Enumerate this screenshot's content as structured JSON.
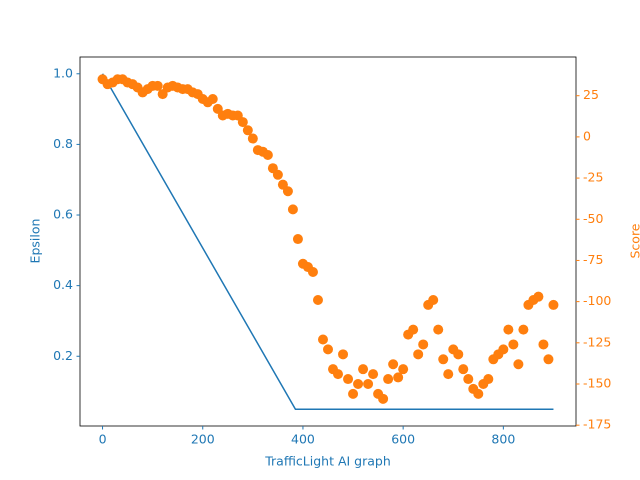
{
  "chart_data": {
    "type": "line",
    "xlabel": "TrafficLight AI graph",
    "ylabel": "Epsilon",
    "y2label": "Score",
    "xlim": [
      -45,
      945
    ],
    "xticks": [
      0,
      200,
      400,
      600,
      800
    ],
    "ylim": [
      0.0025,
      1.0475
    ],
    "yticks": [
      0.2,
      0.4,
      0.6,
      0.8,
      {
        "value": 1,
        "label": "1.0"
      }
    ],
    "y2lim": [
      -175.5,
      48.5
    ],
    "y2ticks": [
      -175,
      -150,
      -125,
      -100,
      -75,
      -50,
      -25,
      0,
      25
    ],
    "y_color": "#1f77b4",
    "y2_color": "#ff7f0e",
    "series": [
      {
        "type": "line",
        "color": "#1f77b4",
        "x": [
          0,
          385,
          900
        ],
        "values": [
          1.0,
          0.05,
          0.05
        ]
      },
      {
        "type": "scatter",
        "axis": "y2",
        "color": "#ff7f0e",
        "x": [
          0,
          10,
          20,
          30,
          40,
          50,
          60,
          70,
          80,
          90,
          100,
          110,
          120,
          130,
          140,
          150,
          160,
          170,
          180,
          190,
          200,
          210,
          220,
          230,
          240,
          250,
          260,
          270,
          280,
          290,
          300,
          310,
          320,
          330,
          340,
          350,
          360,
          370,
          380,
          390,
          400,
          410,
          420,
          430,
          440,
          450,
          460,
          470,
          480,
          490,
          500,
          510,
          520,
          530,
          540,
          550,
          560,
          570,
          580,
          590,
          600,
          610,
          620,
          630,
          640,
          650,
          660,
          670,
          680,
          690,
          700,
          710,
          720,
          730,
          740,
          750,
          760,
          770,
          780,
          790,
          800,
          810,
          820,
          830,
          840,
          850,
          860,
          870,
          880,
          890,
          900
        ],
        "values": [
          35,
          32,
          33,
          35,
          35,
          33,
          32,
          30,
          27,
          29,
          31,
          31,
          26,
          30,
          31,
          30,
          29,
          29,
          27,
          26,
          23,
          21,
          23,
          17,
          13,
          14,
          13,
          13,
          9,
          4,
          -1,
          -8,
          -9,
          -11,
          -19,
          -23,
          -29,
          -33,
          -44,
          -62,
          -77,
          -79,
          -82,
          -99,
          -123,
          -129,
          -141,
          -144,
          -132,
          -147,
          -156,
          -150,
          -141,
          -150,
          -144,
          -156,
          -159,
          -147,
          -138,
          -146,
          -141,
          -120,
          -117,
          -132,
          -126,
          -102,
          -99,
          -117,
          -135,
          -144,
          -129,
          -132,
          -141,
          -147,
          -153,
          -156,
          -150,
          -147,
          -135,
          -132,
          -129,
          -117,
          -126,
          -138,
          -117,
          -102,
          -99,
          -97,
          -126,
          -135,
          -102
        ]
      }
    ]
  }
}
